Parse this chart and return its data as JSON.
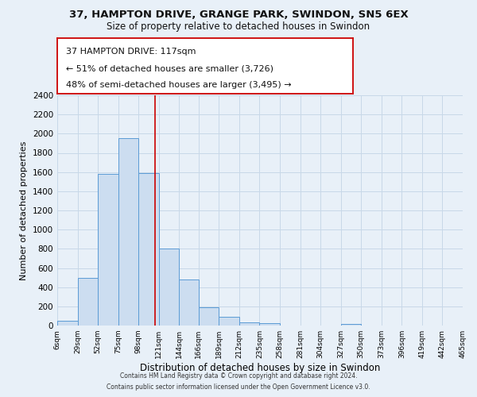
{
  "title_line1": "37, HAMPTON DRIVE, GRANGE PARK, SWINDON, SN5 6EX",
  "title_line2": "Size of property relative to detached houses in Swindon",
  "xlabel": "Distribution of detached houses by size in Swindon",
  "ylabel": "Number of detached properties",
  "bin_edges": [
    6,
    29,
    52,
    75,
    98,
    121,
    144,
    166,
    189,
    212,
    235,
    258,
    281,
    304,
    327,
    350,
    373,
    396,
    419,
    442,
    465
  ],
  "bin_heights": [
    50,
    500,
    1580,
    1950,
    1590,
    800,
    480,
    190,
    90,
    30,
    25,
    0,
    0,
    0,
    20,
    0,
    0,
    0,
    0,
    0
  ],
  "bar_facecolor": "#ccddf0",
  "bar_edgecolor": "#5b9bd5",
  "vline_x": 117,
  "vline_color": "#cc0000",
  "annotation_line1": "37 HAMPTON DRIVE: 117sqm",
  "annotation_line2": "← 51% of detached houses are smaller (3,726)",
  "annotation_line3": "48% of semi-detached houses are larger (3,495) →",
  "annotation_box_facecolor": "#ffffff",
  "annotation_box_edgecolor": "#cc0000",
  "ylim": [
    0,
    2400
  ],
  "yticks": [
    0,
    200,
    400,
    600,
    800,
    1000,
    1200,
    1400,
    1600,
    1800,
    2000,
    2200,
    2400
  ],
  "grid_color": "#c8d8e8",
  "background_color": "#e8f0f8",
  "footer_line1": "Contains HM Land Registry data © Crown copyright and database right 2024.",
  "footer_line2": "Contains public sector information licensed under the Open Government Licence v3.0."
}
